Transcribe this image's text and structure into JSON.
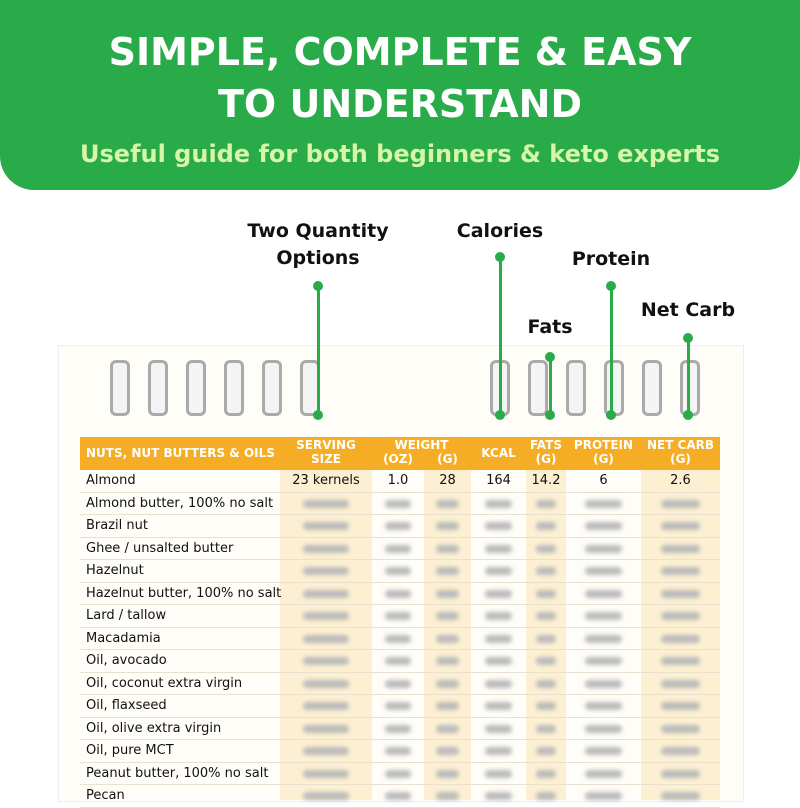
{
  "header": {
    "title_lines": [
      "SIMPLE, COMPLETE & EASY",
      "TO UNDERSTAND"
    ],
    "subtitle": "Useful guide for both beginners & keto experts"
  },
  "callouts": [
    {
      "lines": [
        "Two Quantity",
        "Options"
      ]
    },
    {
      "lines": [
        "Calories"
      ]
    },
    {
      "lines": [
        "Protein"
      ]
    },
    {
      "lines": [
        "Fats"
      ]
    },
    {
      "lines": [
        "Net Carb"
      ]
    }
  ],
  "table": {
    "section": "NUTS, NUT BUTTERS & OILS",
    "serving": [
      "SERVING",
      "SIZE"
    ],
    "weight": "WEIGHT",
    "oz": "(OZ)",
    "g": "(G)",
    "kcal": "KCAL",
    "fats": [
      "FATS",
      "(G)"
    ],
    "protein": [
      "PROTEIN",
      "(G)"
    ],
    "net_carb": [
      "NET CARB",
      "(G)"
    ],
    "rows": [
      {
        "name": "Almond",
        "cells": [
          "23 kernels",
          "1.0",
          "28",
          "164",
          "14.2",
          "6",
          "2.6"
        ]
      },
      {
        "name": "Almond butter, 100% no salt"
      },
      {
        "name": "Brazil nut"
      },
      {
        "name": "Ghee / unsalted butter"
      },
      {
        "name": "Hazelnut"
      },
      {
        "name": "Hazelnut butter, 100% no salt"
      },
      {
        "name": "Lard / tallow"
      },
      {
        "name": "Macadamia"
      },
      {
        "name": "Oil, avocado"
      },
      {
        "name": "Oil, coconut extra virgin"
      },
      {
        "name": "Oil, flaxseed"
      },
      {
        "name": "Oil, olive extra virgin"
      },
      {
        "name": "Oil, pure MCT"
      },
      {
        "name": "Peanut butter, 100% no salt"
      },
      {
        "name": "Pecan"
      }
    ]
  }
}
